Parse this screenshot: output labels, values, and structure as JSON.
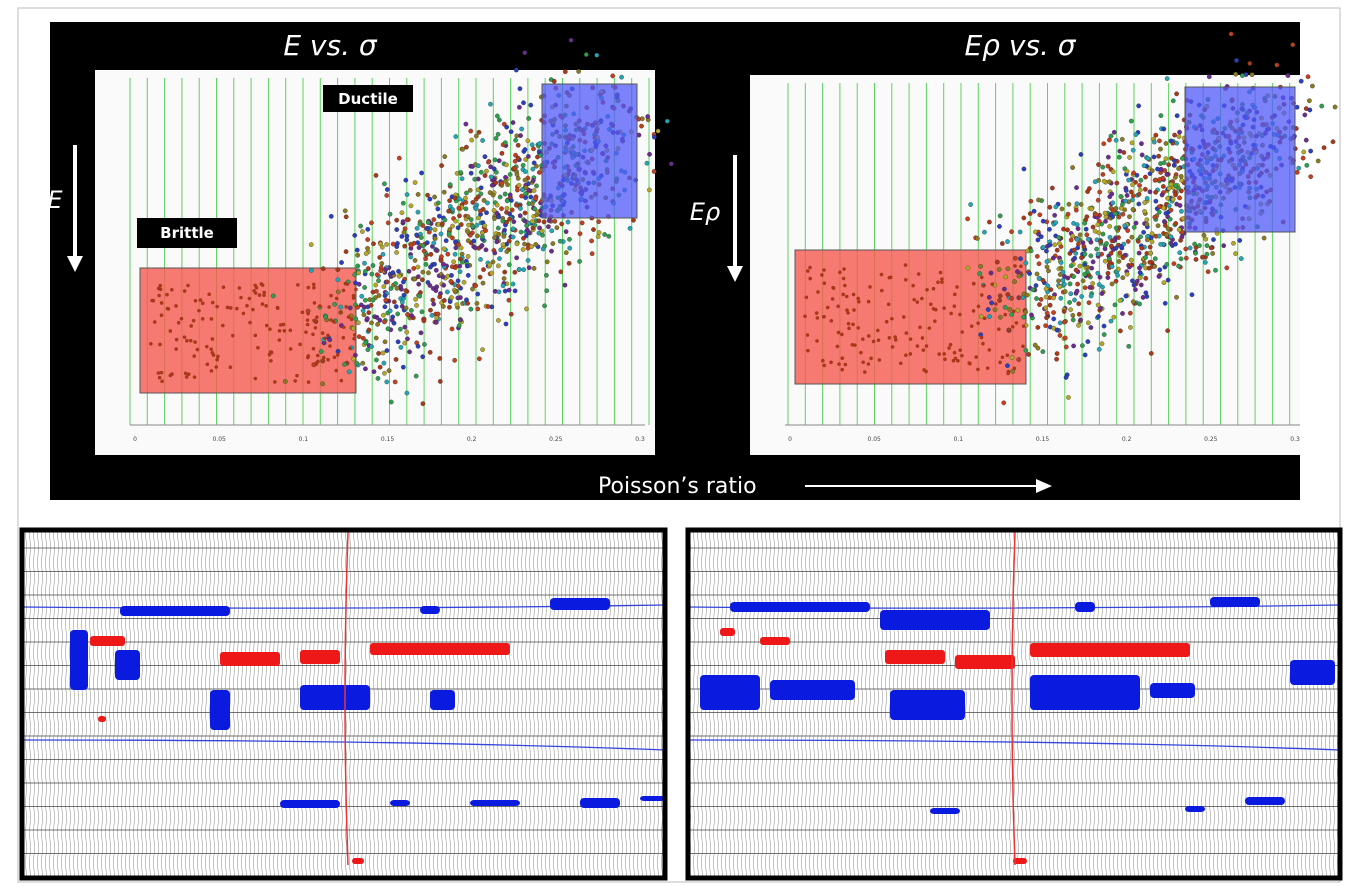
{
  "panels": [
    {
      "title": "E  vs. σ",
      "y_label": "E",
      "regions": [
        "Ductile",
        "Brittle"
      ],
      "xticks": [
        "0",
        "0.05",
        "0.1",
        "0.15",
        "0.2",
        "0.25",
        "0.3"
      ]
    },
    {
      "title": "Eρ  vs. σ",
      "y_label": "Eρ",
      "xticks": [
        "0",
        "0.05",
        "0.1",
        "0.15",
        "0.2",
        "0.25",
        "0.3"
      ]
    }
  ],
  "x_label": "Poisson’s ratio"
}
